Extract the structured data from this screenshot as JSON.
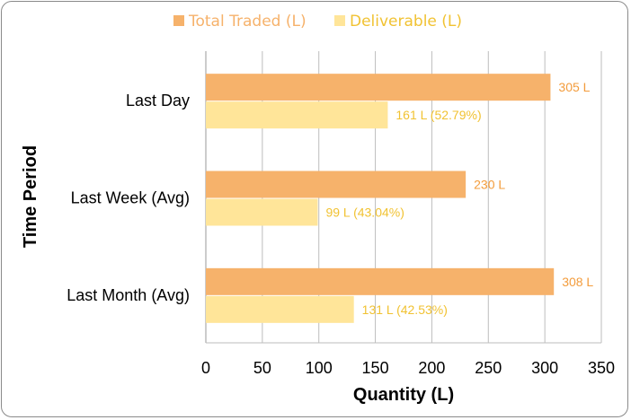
{
  "chart_data": {
    "type": "bar",
    "orientation": "horizontal",
    "title": "",
    "xlabel": "Quantity (L)",
    "ylabel": "Time Period",
    "categories": [
      "Last Day",
      "Last Week (Avg)",
      "Last Month (Avg)"
    ],
    "series": [
      {
        "name": "Total Traded (L)",
        "values": [
          305,
          230,
          308
        ],
        "labels": [
          "305 L",
          "230 L",
          "308 L"
        ],
        "color": "#F6B26B",
        "label_color": "#F39C3C"
      },
      {
        "name": "Deliverable (L)",
        "values": [
          161,
          99,
          131
        ],
        "labels": [
          "161 L (52.79%)",
          "99 L (43.04%)",
          "131 L (42.53%)"
        ],
        "color": "#FFE599",
        "label_color": "#F1C232"
      }
    ],
    "xlim": [
      0,
      350
    ],
    "xticks": [
      0,
      50,
      100,
      150,
      200,
      250,
      300,
      350
    ],
    "grid": true,
    "legend_position": "top-center"
  }
}
